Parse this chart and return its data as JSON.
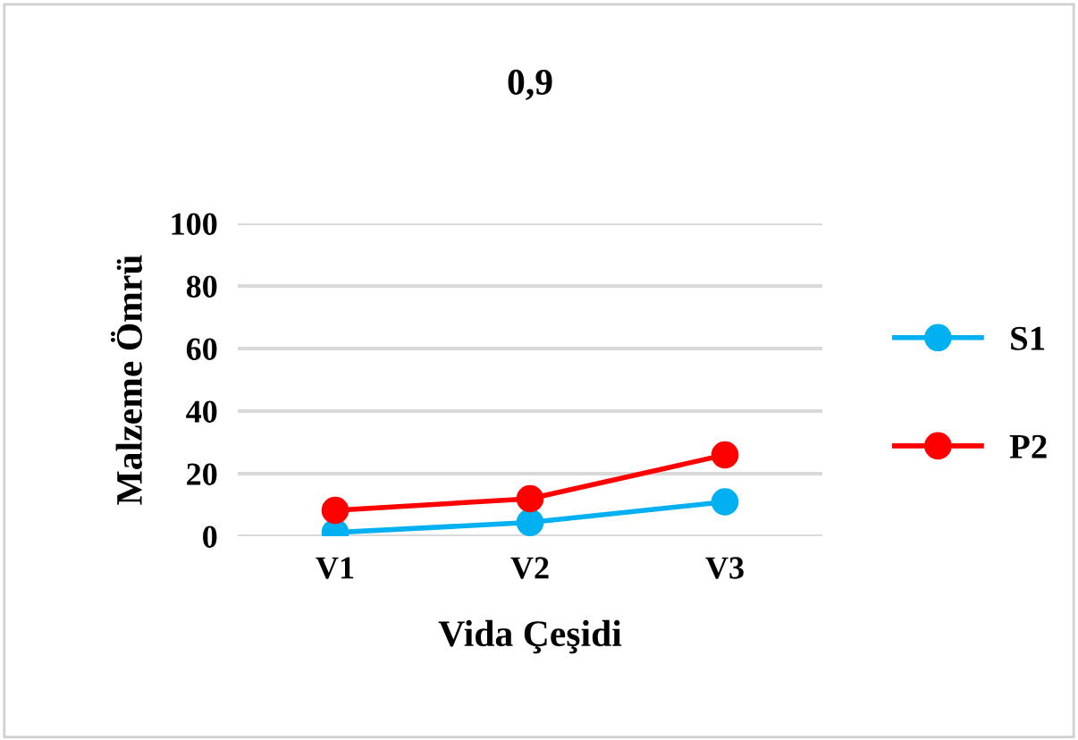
{
  "chart_data": {
    "type": "line",
    "title": "0,9",
    "xlabel": "Vida Çeşidi",
    "ylabel": "Malzeme Ömrü",
    "categories": [
      "V1",
      "V2",
      "V3"
    ],
    "series": [
      {
        "name": "S1",
        "color": "#00b0f0",
        "values": [
          1.2,
          4.4,
          11
        ]
      },
      {
        "name": "P2",
        "color": "#ff0000",
        "values": [
          8.3,
          12,
          26
        ]
      }
    ],
    "ylim": [
      0,
      100
    ],
    "yticks": [
      0,
      20,
      40,
      60,
      80,
      100
    ],
    "grid": "y",
    "legend": "right",
    "marker": "circle",
    "line_style": "solid"
  }
}
